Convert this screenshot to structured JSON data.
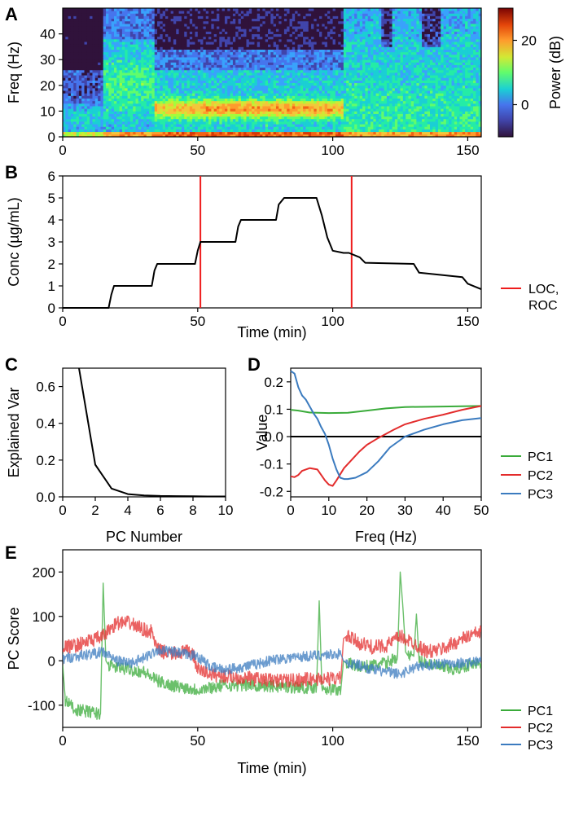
{
  "chart_data": [
    {
      "id": "A",
      "type": "heatmap",
      "panel_label": "A",
      "title": "",
      "xlabel": "",
      "ylabel": "Freq (Hz)",
      "xlim": [
        0,
        155
      ],
      "ylim": [
        0,
        50
      ],
      "xticks": [
        0,
        50,
        100,
        150
      ],
      "yticks": [
        0,
        10,
        20,
        30,
        40
      ],
      "colorbar": {
        "label": "Power (dB)",
        "range": [
          -10,
          30
        ],
        "ticks": [
          0,
          20
        ]
      },
      "regimes": [
        {
          "t0": 0,
          "t1": 15,
          "note": "awake, low power above 20 Hz, moderate low-freq"
        },
        {
          "t0": 15,
          "t1": 34,
          "note": "broadband beta power 10-35 Hz"
        },
        {
          "t0": 34,
          "t1": 104,
          "note": "alpha band ~10 Hz strong, power below 25 Hz"
        },
        {
          "t0": 104,
          "t1": 155,
          "note": "broadband power up to 50 Hz"
        }
      ]
    },
    {
      "id": "B",
      "type": "line",
      "panel_label": "B",
      "xlabel": "Time (min)",
      "ylabel": "Conc (µg/mL)",
      "xlim": [
        0,
        155
      ],
      "ylim": [
        0,
        6
      ],
      "xticks": [
        0,
        50,
        100,
        150
      ],
      "yticks": [
        0,
        1,
        2,
        3,
        4,
        5,
        6
      ],
      "series": [
        {
          "name": "Concentration",
          "color": "#000000",
          "x": [
            0,
            17,
            18,
            19,
            33,
            34,
            35,
            49,
            50,
            51,
            64,
            65,
            66,
            79,
            80,
            82,
            94,
            96,
            98,
            100,
            104,
            106,
            110,
            112,
            130,
            132,
            140,
            148,
            150,
            155
          ],
          "y": [
            0,
            0,
            0.6,
            1,
            1,
            1.7,
            2,
            2,
            2.6,
            3,
            3,
            3.7,
            4,
            4,
            4.7,
            5,
            5,
            4.2,
            3.2,
            2.6,
            2.5,
            2.5,
            2.3,
            2.05,
            2.0,
            1.6,
            1.5,
            1.4,
            1.1,
            0.85
          ]
        }
      ],
      "vlines": [
        51,
        107
      ],
      "vline_color": "#ee1c1c",
      "legend": [
        {
          "label": "LOC,\nROC",
          "lines": [
            "LOC,",
            "ROC"
          ],
          "color": "#ee1c1c"
        }
      ]
    },
    {
      "id": "C",
      "type": "line",
      "panel_label": "C",
      "xlabel": "PC Number",
      "ylabel": "Explained Var",
      "xlim": [
        0,
        10
      ],
      "ylim": [
        0,
        0.7
      ],
      "xticks": [
        0,
        2,
        4,
        6,
        8,
        10
      ],
      "yticks": [
        0.0,
        0.2,
        0.4,
        0.6
      ],
      "series": [
        {
          "name": "Explained variance",
          "color": "#000000",
          "x": [
            1,
            2,
            3,
            4,
            5,
            6,
            7,
            8,
            9,
            10
          ],
          "y": [
            0.7,
            0.175,
            0.045,
            0.015,
            0.008,
            0.005,
            0.004,
            0.003,
            0.002,
            0.002
          ]
        }
      ]
    },
    {
      "id": "D",
      "type": "line",
      "panel_label": "D",
      "xlabel": "Freq (Hz)",
      "ylabel": "Value",
      "xlim": [
        0,
        50
      ],
      "ylim": [
        -0.22,
        0.25
      ],
      "xticks": [
        0,
        10,
        20,
        30,
        40,
        50
      ],
      "yticks": [
        -0.2,
        -0.1,
        0.0,
        0.1,
        0.2
      ],
      "hline": 0,
      "series": [
        {
          "name": "PC1",
          "color": "#3aab3a",
          "x": [
            0,
            2,
            5,
            10,
            15,
            20,
            25,
            30,
            40,
            50
          ],
          "y": [
            0.098,
            0.095,
            0.088,
            0.086,
            0.087,
            0.095,
            0.103,
            0.108,
            0.11,
            0.112
          ]
        },
        {
          "name": "PC2",
          "color": "#e32c2c",
          "x": [
            0,
            1,
            2,
            3,
            5,
            7,
            9,
            10,
            11,
            12,
            14,
            16,
            18,
            20,
            23,
            27,
            30,
            35,
            40,
            45,
            50
          ],
          "y": [
            -0.145,
            -0.148,
            -0.14,
            -0.125,
            -0.115,
            -0.12,
            -0.16,
            -0.175,
            -0.18,
            -0.16,
            -0.115,
            -0.085,
            -0.055,
            -0.03,
            -0.005,
            0.025,
            0.045,
            0.065,
            0.08,
            0.098,
            0.112
          ]
        },
        {
          "name": "PC3",
          "color": "#3b7bbf",
          "x": [
            0,
            1,
            2,
            3,
            4,
            5,
            6,
            7,
            8,
            9,
            10,
            11,
            12,
            13,
            14,
            15,
            17,
            20,
            23,
            26,
            30,
            35,
            40,
            45,
            50
          ],
          "y": [
            0.24,
            0.23,
            0.18,
            0.15,
            0.135,
            0.11,
            0.085,
            0.065,
            0.035,
            0.01,
            -0.03,
            -0.08,
            -0.12,
            -0.15,
            -0.155,
            -0.155,
            -0.15,
            -0.13,
            -0.09,
            -0.04,
            0.0,
            0.025,
            0.045,
            0.06,
            0.068
          ]
        }
      ],
      "legend": [
        {
          "label": "PC1",
          "color": "#3aab3a"
        },
        {
          "label": "PC2",
          "color": "#e32c2c"
        },
        {
          "label": "PC3",
          "color": "#3b7bbf"
        }
      ]
    },
    {
      "id": "E",
      "type": "line",
      "panel_label": "E",
      "xlabel": "Time (min)",
      "ylabel": "PC Score",
      "xlim": [
        0,
        155
      ],
      "ylim": [
        -150,
        250
      ],
      "xticks": [
        0,
        50,
        100,
        150
      ],
      "yticks": [
        -100,
        0,
        100,
        200
      ],
      "series": [
        {
          "name": "PC1",
          "color": "#3aab3a",
          "x": [
            0,
            1,
            5,
            10,
            14,
            15,
            16,
            17,
            20,
            25,
            30,
            35,
            40,
            45,
            50,
            55,
            60,
            70,
            80,
            90,
            94,
            95,
            96,
            100,
            103,
            104,
            105,
            108,
            110,
            115,
            120,
            124,
            125,
            126,
            127,
            128,
            130,
            131,
            132,
            135,
            140,
            145,
            150,
            155
          ],
          "y": [
            -10,
            -90,
            -110,
            -115,
            -120,
            175,
            0,
            -10,
            -15,
            -20,
            -25,
            -45,
            -55,
            -60,
            -65,
            -60,
            -55,
            -55,
            -58,
            -60,
            -60,
            135,
            -60,
            -65,
            -65,
            0,
            -5,
            -10,
            -15,
            -10,
            -5,
            10,
            200,
            120,
            20,
            10,
            10,
            105,
            0,
            -5,
            -15,
            -20,
            -10,
            -5
          ]
        },
        {
          "name": "PC2",
          "color": "#e32c2c",
          "x": [
            0,
            5,
            10,
            15,
            18,
            20,
            25,
            30,
            33,
            35,
            40,
            45,
            48,
            50,
            55,
            60,
            70,
            80,
            90,
            100,
            103,
            104,
            105,
            110,
            115,
            120,
            125,
            130,
            135,
            140,
            145,
            150,
            155
          ],
          "y": [
            30,
            35,
            45,
            55,
            75,
            85,
            85,
            70,
            65,
            25,
            15,
            20,
            20,
            -20,
            -30,
            -35,
            -40,
            -45,
            -42,
            -40,
            -40,
            50,
            55,
            40,
            30,
            35,
            55,
            40,
            20,
            25,
            40,
            55,
            65
          ]
        },
        {
          "name": "PC3",
          "color": "#3b7bbf",
          "x": [
            0,
            5,
            10,
            15,
            20,
            25,
            30,
            35,
            40,
            45,
            50,
            55,
            60,
            70,
            80,
            90,
            100,
            103,
            104,
            105,
            110,
            115,
            120,
            125,
            130,
            135,
            140,
            145,
            150,
            155
          ],
          "y": [
            5,
            10,
            15,
            20,
            0,
            -5,
            5,
            25,
            20,
            15,
            10,
            -15,
            -20,
            -10,
            5,
            10,
            15,
            15,
            0,
            -5,
            -10,
            -20,
            -25,
            -30,
            -15,
            -10,
            -5,
            -5,
            -5,
            0
          ]
        }
      ],
      "legend": [
        {
          "label": "PC1",
          "color": "#3aab3a"
        },
        {
          "label": "PC2",
          "color": "#e32c2c"
        },
        {
          "label": "PC3",
          "color": "#3b7bbf"
        }
      ]
    }
  ]
}
